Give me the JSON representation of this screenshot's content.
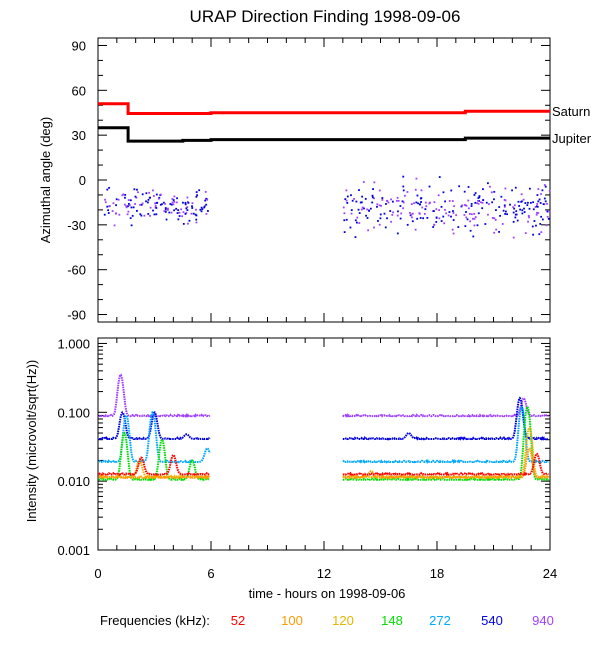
{
  "title": "URAP Direction Finding  1998-09-06",
  "colors": {
    "axis": "#000000",
    "saturn": "#ff0000",
    "jupiter": "#000000",
    "f52": "#ff0000",
    "f100": "#ff9900",
    "f120": "#e8b400",
    "f148": "#00e000",
    "f272": "#00a8ff",
    "f540": "#0000dd",
    "f940": "#a040ff"
  },
  "chart_data": [
    {
      "type": "line",
      "title": "URAP Direction Finding  1998-09-06",
      "ylabel": "Azimuthal angle (deg)",
      "xlim": [
        0,
        24
      ],
      "ylim": [
        -95,
        95
      ],
      "yticks": [
        90,
        60,
        30,
        0,
        -30,
        -60,
        -90
      ],
      "ytick_labels": [
        "90",
        "60",
        "30",
        "0",
        "-30",
        "-60",
        "-90"
      ],
      "series": [
        {
          "name": "Saturn",
          "color": "#ff0000",
          "points": [
            [
              0,
              51
            ],
            [
              1.6,
              51
            ],
            [
              1.6,
              44.5
            ],
            [
              6,
              44.5
            ],
            [
              6,
              45
            ],
            [
              19.5,
              45
            ],
            [
              19.5,
              46
            ],
            [
              24,
              46
            ]
          ]
        },
        {
          "name": "Jupiter",
          "color": "#000000",
          "points": [
            [
              0,
              35
            ],
            [
              1.6,
              35
            ],
            [
              1.6,
              26
            ],
            [
              4.5,
              26
            ],
            [
              4.5,
              26.5
            ],
            [
              6,
              26.5
            ],
            [
              6,
              27
            ],
            [
              19.5,
              27
            ],
            [
              19.5,
              28
            ],
            [
              24,
              28
            ]
          ]
        }
      ],
      "scatter_groups": [
        {
          "name": "direction points 00-06 h",
          "x_range": [
            0.3,
            5.8
          ],
          "y_range": [
            -30,
            -5
          ],
          "y_center": -17,
          "colors": [
            "#0000dd",
            "#a040ff"
          ]
        },
        {
          "name": "direction points 13-24 h",
          "x_range": [
            13,
            24
          ],
          "y_range": [
            -40,
            -5
          ],
          "y_center": -18,
          "colors": [
            "#0000dd",
            "#a040ff"
          ]
        }
      ],
      "labels": [
        "Saturn",
        "Jupiter"
      ]
    },
    {
      "type": "line",
      "ylabel": "Intensity (microvolt/sqrt(Hz))",
      "xlabel": "time - hours on 1998-09-06",
      "yscale": "log",
      "ylim": [
        0.001,
        1.2
      ],
      "yticks": [
        1.0,
        0.1,
        0.01,
        0.001
      ],
      "ytick_labels": [
        "1.000",
        "0.100",
        "0.010",
        "0.001"
      ],
      "xlim": [
        0,
        24
      ],
      "xticks": [
        0,
        6,
        12,
        18,
        24
      ],
      "xtick_labels": [
        "0",
        "6",
        "12",
        "18",
        "24"
      ],
      "data_gap": [
        6,
        13
      ],
      "series": [
        {
          "name": "940",
          "color": "#a040ff",
          "baseline": 0.088,
          "peaks": [
            [
              1.2,
              0.35
            ],
            [
              22.6,
              0.16
            ]
          ]
        },
        {
          "name": "540",
          "color": "#0000dd",
          "baseline": 0.041,
          "peaks": [
            [
              1.3,
              0.1
            ],
            [
              3,
              0.1
            ],
            [
              4.7,
              0.048
            ],
            [
              16.5,
              0.05
            ],
            [
              22.4,
              0.16
            ]
          ]
        },
        {
          "name": "272",
          "color": "#00a8ff",
          "baseline": 0.019,
          "peaks": [
            [
              1.5,
              0.09
            ],
            [
              2.9,
              0.1
            ],
            [
              5.8,
              0.03
            ],
            [
              22.5,
              0.12
            ]
          ]
        },
        {
          "name": "148",
          "color": "#00e000",
          "baseline": 0.0105,
          "peaks": [
            [
              1.4,
              0.05
            ],
            [
              3.4,
              0.04
            ],
            [
              5.0,
              0.02
            ],
            [
              22.8,
              0.12
            ]
          ]
        },
        {
          "name": "120",
          "color": "#e8b400",
          "baseline": 0.0115,
          "peaks": [
            [
              2.2,
              0.02
            ],
            [
              22.9,
              0.06
            ]
          ]
        },
        {
          "name": "100",
          "color": "#ff9900",
          "baseline": 0.0112,
          "peaks": [
            [
              14.5,
              0.014
            ],
            [
              22.9,
              0.03
            ]
          ]
        },
        {
          "name": "52",
          "color": "#ff0000",
          "baseline": 0.0125,
          "peaks": [
            [
              2.3,
              0.022
            ],
            [
              4.0,
              0.024
            ],
            [
              23.3,
              0.025
            ]
          ]
        }
      ]
    }
  ],
  "legend": {
    "prefix": "Frequencies (kHz):",
    "items": [
      {
        "label": "52",
        "color": "#ff0000"
      },
      {
        "label": "100",
        "color": "#ff9900"
      },
      {
        "label": "120",
        "color": "#e8b400"
      },
      {
        "label": "148",
        "color": "#00e000"
      },
      {
        "label": "272",
        "color": "#00a8ff"
      },
      {
        "label": "540",
        "color": "#0000dd"
      },
      {
        "label": "940",
        "color": "#a040ff"
      }
    ]
  }
}
